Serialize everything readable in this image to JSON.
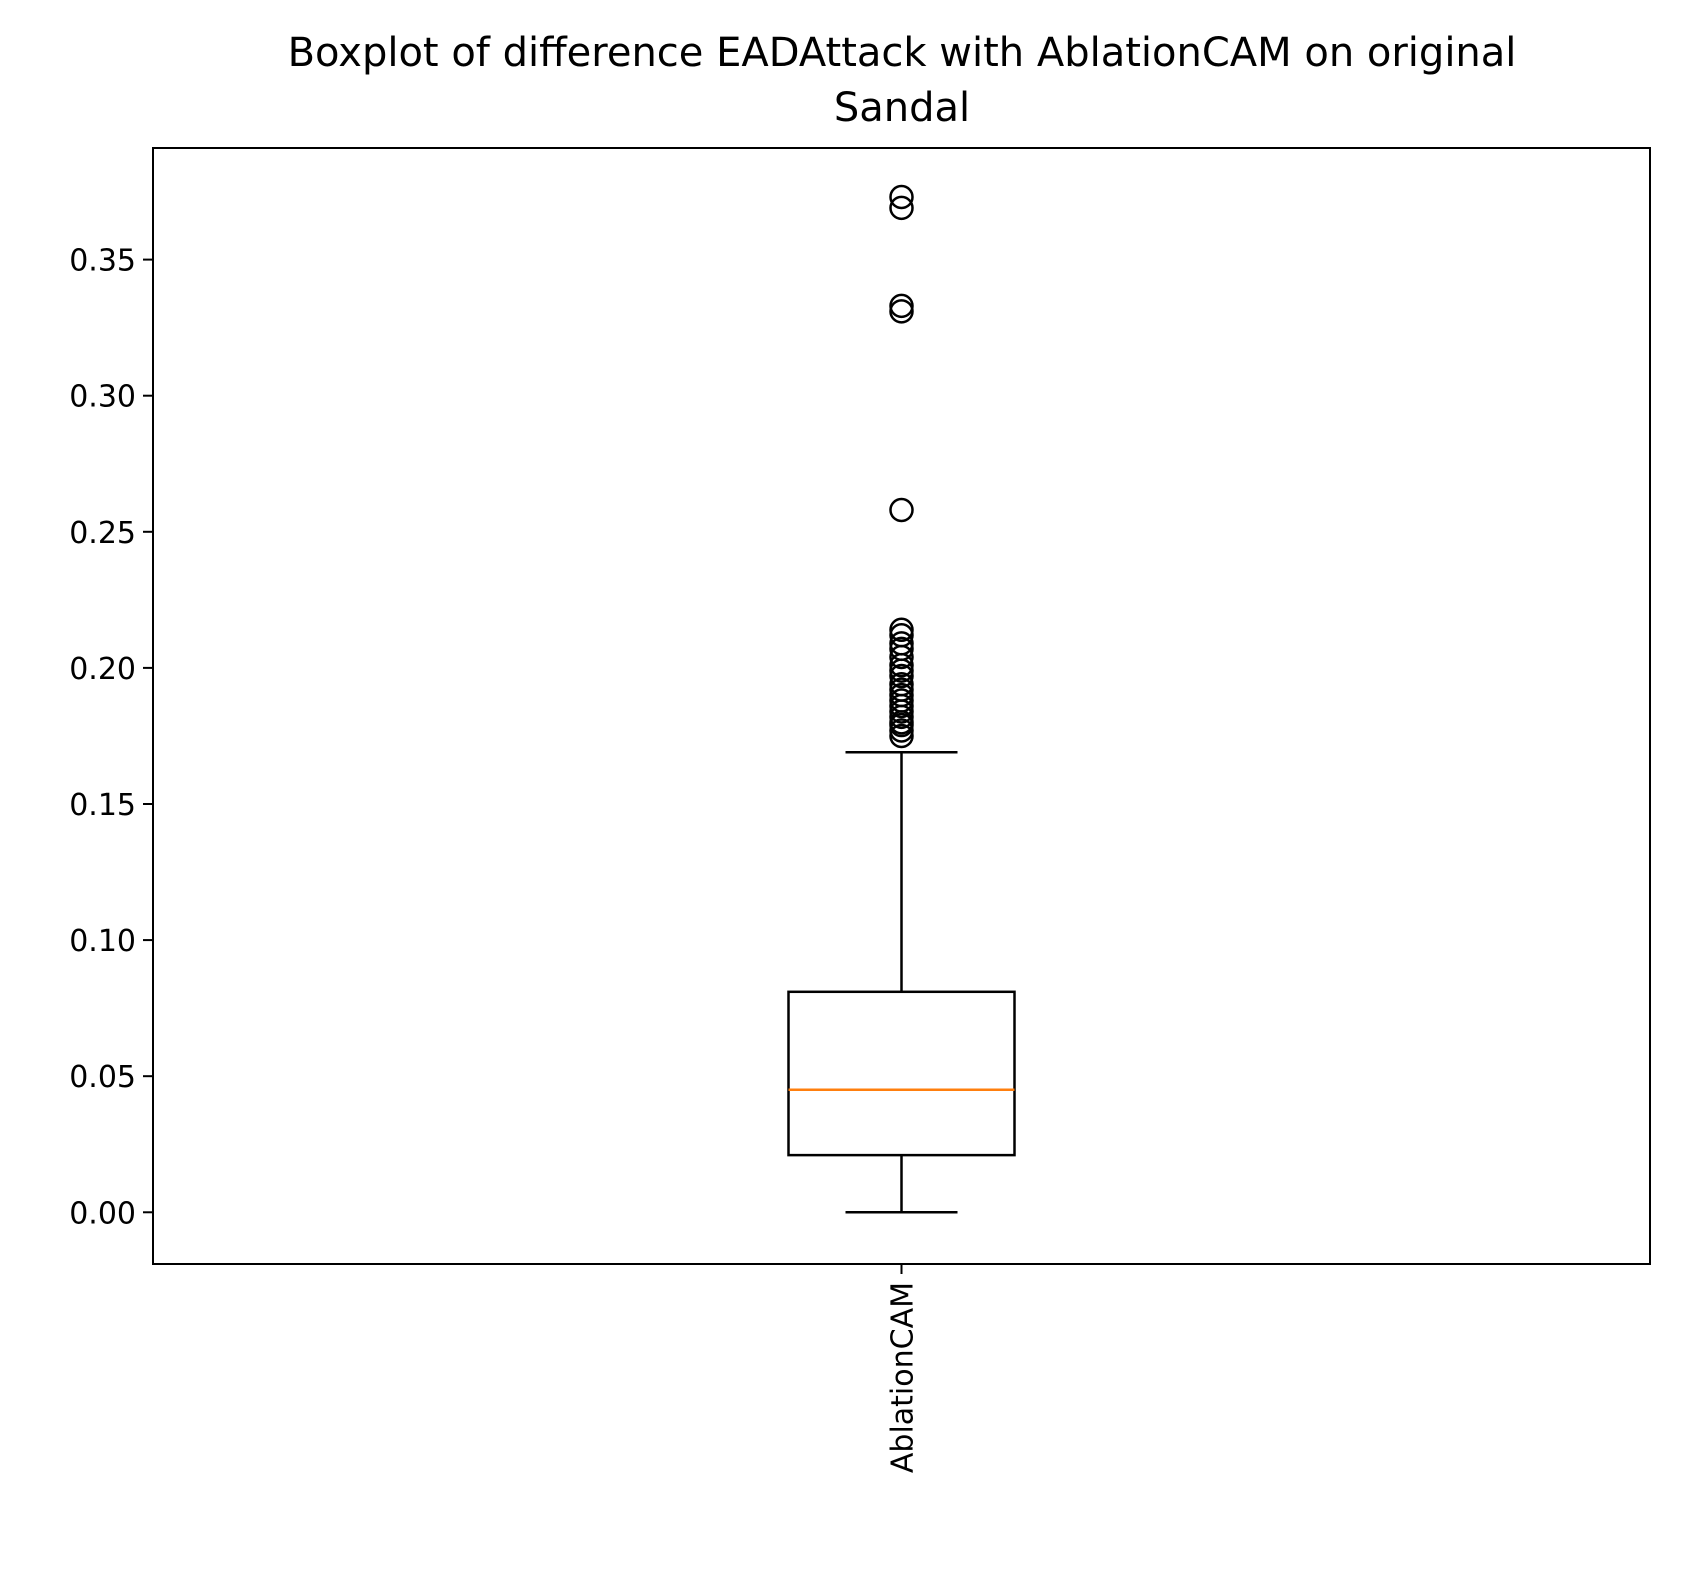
{
  "chart_data": {
    "type": "boxplot",
    "title": "Boxplot of difference EADAttack with AblationCAM on original\nSandal",
    "title_lines": [
      "Boxplot of difference EADAttack with AblationCAM on original",
      "Sandal"
    ],
    "xlabel": "",
    "ylabel": "",
    "categories": [
      "AblationCAM"
    ],
    "ylim": [
      -0.019,
      0.391
    ],
    "y_ticks": [
      0.0,
      0.05,
      0.1,
      0.15,
      0.2,
      0.25,
      0.3,
      0.35
    ],
    "y_tick_labels": [
      "0.00",
      "0.05",
      "0.10",
      "0.15",
      "0.20",
      "0.25",
      "0.30",
      "0.35"
    ],
    "grid": false,
    "boxes": [
      {
        "category": "AblationCAM",
        "whisker_low": 0.0,
        "q1": 0.021,
        "median": 0.045,
        "q3": 0.081,
        "whisker_high": 0.169,
        "outliers": [
          0.175,
          0.177,
          0.179,
          0.18,
          0.182,
          0.184,
          0.186,
          0.188,
          0.19,
          0.192,
          0.194,
          0.197,
          0.199,
          0.201,
          0.204,
          0.207,
          0.209,
          0.212,
          0.214,
          0.258,
          0.331,
          0.333,
          0.369,
          0.373
        ]
      }
    ],
    "colors": {
      "box": "#000000",
      "median": "#ff7f0e",
      "outlier_edge": "#000000"
    }
  }
}
